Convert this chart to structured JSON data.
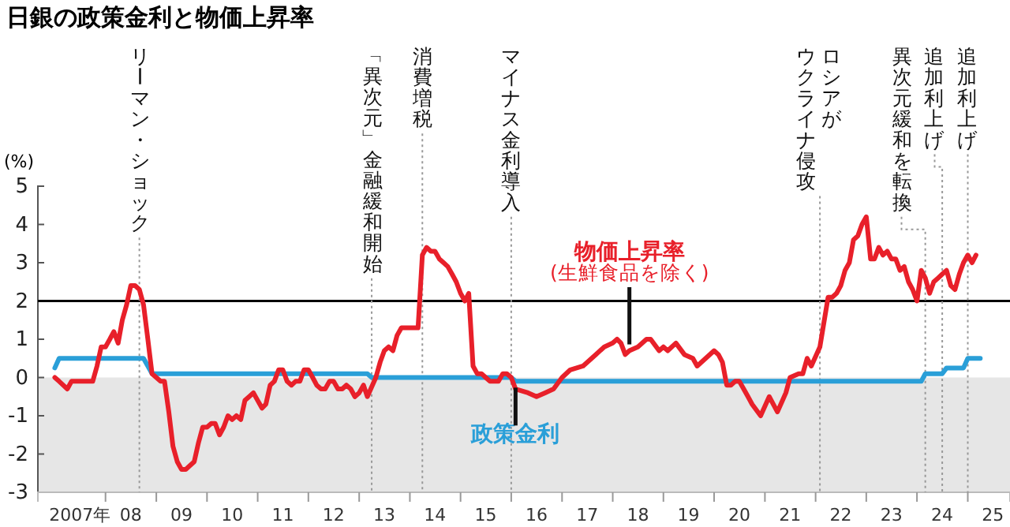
{
  "chart_data": {
    "type": "line",
    "title": "日銀の政策金利と物価上昇率",
    "ylabel": "(%)",
    "xlim": [
      "2006-09",
      "2025-11"
    ],
    "ylim": [
      -3,
      5
    ],
    "yticks": [
      -3,
      -2,
      -1,
      0,
      1,
      2,
      3,
      4,
      5
    ],
    "xticks": [
      {
        "value": "2007-07",
        "label": "2007年"
      },
      {
        "value": "2008-01",
        "label": null
      },
      {
        "value": "2008-07",
        "label": "08"
      },
      {
        "value": "2009-01",
        "label": null
      },
      {
        "value": "2009-07",
        "label": "09"
      },
      {
        "value": "2010-01",
        "label": null
      },
      {
        "value": "2010-07",
        "label": "10"
      },
      {
        "value": "2011-01",
        "label": null
      },
      {
        "value": "2011-07",
        "label": "11"
      },
      {
        "value": "2012-01",
        "label": null
      },
      {
        "value": "2012-07",
        "label": "12"
      },
      {
        "value": "2013-01",
        "label": null
      },
      {
        "value": "2013-07",
        "label": "13"
      },
      {
        "value": "2014-01",
        "label": null
      },
      {
        "value": "2014-07",
        "label": "14"
      },
      {
        "value": "2015-01",
        "label": null
      },
      {
        "value": "2015-07",
        "label": "15"
      },
      {
        "value": "2016-01",
        "label": null
      },
      {
        "value": "2016-07",
        "label": "16"
      },
      {
        "value": "2017-01",
        "label": null
      },
      {
        "value": "2017-07",
        "label": "17"
      },
      {
        "value": "2018-01",
        "label": null
      },
      {
        "value": "2018-07",
        "label": "18"
      },
      {
        "value": "2019-01",
        "label": null
      },
      {
        "value": "2019-07",
        "label": "19"
      },
      {
        "value": "2020-01",
        "label": null
      },
      {
        "value": "2020-07",
        "label": "20"
      },
      {
        "value": "2021-01",
        "label": null
      },
      {
        "value": "2021-07",
        "label": "21"
      },
      {
        "value": "2022-01",
        "label": null
      },
      {
        "value": "2022-07",
        "label": "22"
      },
      {
        "value": "2023-01",
        "label": null
      },
      {
        "value": "2023-07",
        "label": "23"
      },
      {
        "value": "2024-01",
        "label": null
      },
      {
        "value": "2024-07",
        "label": "24"
      },
      {
        "value": "2025-01",
        "label": null
      },
      {
        "value": "2025-07",
        "label": "25"
      }
    ],
    "legend": false,
    "grid": false,
    "bands": [
      {
        "axis": "y",
        "from": -3,
        "to": 0,
        "color": "#e6e6e6"
      }
    ],
    "ref_lines": [
      {
        "axis": "y",
        "value": 2,
        "color": "#000000",
        "line_style": "solid"
      },
      {
        "axis": "x",
        "value": "2008-09",
        "label": "リーマン・ショック",
        "color": "#999999",
        "line_style": "dotted"
      },
      {
        "axis": "x",
        "value": "2013-04",
        "label": "「異次元」金融緩和開始",
        "color": "#999999",
        "line_style": "dotted"
      },
      {
        "axis": "x",
        "value": "2014-04",
        "label": "消費増税",
        "color": "#999999",
        "line_style": "dotted"
      },
      {
        "axis": "x",
        "value": "2016-01",
        "label": "マイナス金利導入",
        "color": "#999999",
        "line_style": "dotted"
      },
      {
        "axis": "x",
        "value": "2022-02",
        "label": "ロシアがウクライナ侵攻",
        "color": "#999999",
        "line_style": "dotted"
      },
      {
        "axis": "x",
        "value": "2024-03",
        "label": "異次元緩和を転換",
        "color": "#999999",
        "line_style": "dotted"
      },
      {
        "axis": "x",
        "value": "2024-07",
        "label": "追加利上げ",
        "color": "#999999",
        "line_style": "dotted"
      },
      {
        "axis": "x",
        "value": "2025-01",
        "label": "追加利上げ",
        "color": "#999999",
        "line_style": "dotted"
      }
    ],
    "series": [
      {
        "name": "物価上昇率\n(生鮮食品を除く)",
        "color": "#e8202a",
        "x": [
          "2007-01",
          "2007-02",
          "2007-04",
          "2007-05",
          "2007-08",
          "2007-10",
          "2007-11",
          "2007-12",
          "2008-01",
          "2008-02",
          "2008-03",
          "2008-04",
          "2008-05",
          "2008-06",
          "2008-07",
          "2008-08",
          "2008-09",
          "2008-10",
          "2008-11",
          "2008-12",
          "2009-01",
          "2009-02",
          "2009-03",
          "2009-04",
          "2009-05",
          "2009-06",
          "2009-07",
          "2009-08",
          "2009-09",
          "2009-10",
          "2009-11",
          "2009-12",
          "2010-01",
          "2010-02",
          "2010-03",
          "2010-04",
          "2010-05",
          "2010-06",
          "2010-07",
          "2010-08",
          "2010-09",
          "2010-10",
          "2010-11",
          "2010-12",
          "2011-01",
          "2011-02",
          "2011-03",
          "2011-04",
          "2011-05",
          "2011-06",
          "2011-07",
          "2011-08",
          "2011-09",
          "2011-10",
          "2011-11",
          "2011-12",
          "2012-01",
          "2012-02",
          "2012-03",
          "2012-04",
          "2012-05",
          "2012-06",
          "2012-07",
          "2012-08",
          "2012-09",
          "2012-10",
          "2012-11",
          "2012-12",
          "2013-01",
          "2013-02",
          "2013-03",
          "2013-05",
          "2013-06",
          "2013-07",
          "2013-08",
          "2013-09",
          "2013-10",
          "2013-11",
          "2013-12",
          "2014-01",
          "2014-03",
          "2014-04",
          "2014-05",
          "2014-06",
          "2014-07",
          "2014-08",
          "2014-09",
          "2014-10",
          "2014-11",
          "2014-12",
          "2015-01",
          "2015-02",
          "2015-03",
          "2015-04",
          "2015-05",
          "2015-06",
          "2015-07",
          "2015-08",
          "2015-09",
          "2015-10",
          "2015-11",
          "2015-12",
          "2016-01",
          "2016-02",
          "2016-05",
          "2016-07",
          "2016-09",
          "2016-11",
          "2017-01",
          "2017-03",
          "2017-06",
          "2017-09",
          "2017-11",
          "2018-01",
          "2018-02",
          "2018-03",
          "2018-04",
          "2018-05",
          "2018-07",
          "2018-09",
          "2018-10",
          "2018-12",
          "2019-01",
          "2019-02",
          "2019-04",
          "2019-06",
          "2019-08",
          "2019-09",
          "2019-11",
          "2020-01",
          "2020-02",
          "2020-03",
          "2020-04",
          "2020-05",
          "2020-06",
          "2020-07",
          "2020-08",
          "2020-09",
          "2020-10",
          "2020-12",
          "2021-02",
          "2021-04",
          "2021-06",
          "2021-07",
          "2021-09",
          "2021-10",
          "2021-11",
          "2021-12",
          "2022-02",
          "2022-04",
          "2022-05",
          "2022-06",
          "2022-07",
          "2022-08",
          "2022-09",
          "2022-10",
          "2022-11",
          "2022-12",
          "2023-01",
          "2023-02",
          "2023-03",
          "2023-04",
          "2023-05",
          "2023-06",
          "2023-07",
          "2023-08",
          "2023-09",
          "2023-10",
          "2023-11",
          "2023-12",
          "2024-01",
          "2024-02",
          "2024-03",
          "2024-04",
          "2024-05",
          "2024-06",
          "2024-07",
          "2024-08",
          "2024-09",
          "2024-10",
          "2024-11",
          "2024-12",
          "2025-01",
          "2025-02",
          "2025-03"
        ],
        "values": [
          0.0,
          -0.1,
          -0.3,
          -0.1,
          -0.1,
          -0.1,
          0.3,
          0.8,
          0.8,
          1.0,
          1.2,
          0.9,
          1.5,
          1.9,
          2.4,
          2.4,
          2.3,
          1.9,
          1.0,
          0.1,
          0.0,
          -0.1,
          -0.1,
          -0.9,
          -1.8,
          -2.2,
          -2.4,
          -2.4,
          -2.3,
          -2.2,
          -1.7,
          -1.3,
          -1.3,
          -1.2,
          -1.2,
          -1.5,
          -1.3,
          -1.0,
          -1.1,
          -1.0,
          -1.1,
          -0.6,
          -0.5,
          -0.4,
          -0.6,
          -0.8,
          -0.7,
          -0.2,
          -0.1,
          0.2,
          0.2,
          -0.1,
          -0.2,
          -0.1,
          -0.1,
          0.2,
          0.2,
          0.0,
          -0.2,
          -0.3,
          -0.3,
          -0.1,
          -0.1,
          -0.3,
          -0.3,
          -0.2,
          -0.3,
          -0.5,
          -0.4,
          -0.2,
          -0.5,
          0.0,
          0.4,
          0.7,
          0.8,
          0.7,
          1.1,
          1.3,
          1.3,
          1.3,
          1.3,
          3.2,
          3.4,
          3.3,
          3.3,
          3.1,
          3.0,
          2.9,
          2.7,
          2.5,
          2.2,
          2.0,
          2.2,
          0.3,
          0.1,
          0.1,
          0.0,
          -0.1,
          -0.1,
          -0.1,
          0.1,
          0.1,
          0.0,
          -0.3,
          -0.4,
          -0.5,
          -0.4,
          -0.3,
          0.0,
          0.2,
          0.3,
          0.6,
          0.8,
          0.9,
          1.0,
          0.9,
          0.6,
          0.7,
          0.8,
          1.0,
          1.0,
          0.7,
          0.8,
          0.7,
          0.9,
          0.6,
          0.5,
          0.3,
          0.5,
          0.7,
          0.6,
          0.4,
          -0.2,
          -0.2,
          -0.1,
          -0.1,
          -0.3,
          -0.5,
          -0.7,
          -1.0,
          -0.5,
          -0.9,
          -0.4,
          0.0,
          0.1,
          0.1,
          0.5,
          0.3,
          0.8,
          2.1,
          2.1,
          2.2,
          2.4,
          2.8,
          3.0,
          3.6,
          3.7,
          4.0,
          4.2,
          3.1,
          3.1,
          3.4,
          3.2,
          3.3,
          3.1,
          3.1,
          2.8,
          2.9,
          2.5,
          2.3,
          2.0,
          2.8,
          2.6,
          2.2,
          2.5,
          2.6,
          2.7,
          2.8,
          2.4,
          2.3,
          2.7,
          3.0,
          3.2,
          3.0,
          3.2
        ]
      },
      {
        "name": "政策金利",
        "color": "#2a9fd8",
        "x": [
          "2007-01",
          "2007-02",
          "2008-10",
          "2008-11",
          "2008-12",
          "2013-03",
          "2013-04",
          "2016-01",
          "2016-02",
          "2024-02",
          "2024-03",
          "2024-07",
          "2024-08",
          "2024-12",
          "2025-01",
          "2025-04"
        ],
        "values": [
          0.25,
          0.5,
          0.5,
          0.3,
          0.1,
          0.1,
          0.0,
          0.0,
          -0.1,
          -0.1,
          0.1,
          0.1,
          0.25,
          0.25,
          0.5,
          0.5
        ]
      }
    ]
  }
}
